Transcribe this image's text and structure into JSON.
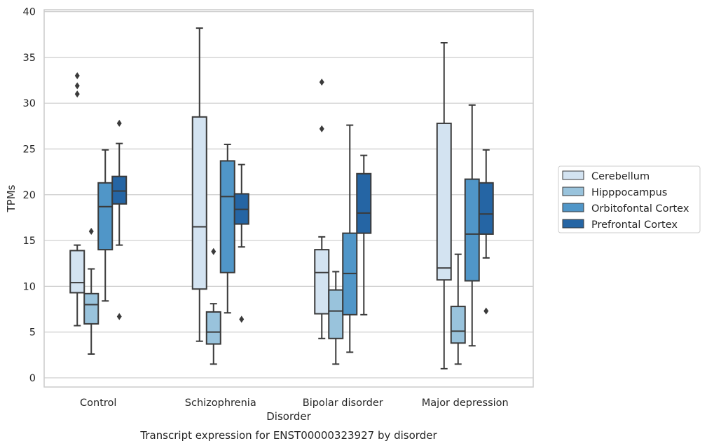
{
  "chart_data": {
    "type": "box",
    "xlabel": "Disorder",
    "ylabel": "TPMs",
    "caption": "Transcript expression for ENST00000323927 by disorder",
    "ylim": [
      -1,
      40.2
    ],
    "yticks": [
      0,
      5,
      10,
      15,
      20,
      25,
      30,
      35,
      40
    ],
    "grid": "horizontal",
    "legend_position": "right, outside plot",
    "categories": [
      "Control",
      "Schizophrenia",
      "Bipolar disorder",
      "Major depression"
    ],
    "series": [
      {
        "name": "Cerebellum",
        "color": "#d3e3f1",
        "boxes": [
          {
            "whisker_low": 5.7,
            "q1": 9.3,
            "median": 10.4,
            "q3": 13.9,
            "whisker_high": 14.5,
            "outliers": [
              31.0,
              31.9,
              33.0
            ]
          },
          {
            "whisker_low": 4.0,
            "q1": 9.7,
            "median": 16.5,
            "q3": 28.5,
            "whisker_high": 38.2,
            "outliers": []
          },
          {
            "whisker_low": 4.3,
            "q1": 7.0,
            "median": 11.5,
            "q3": 14.0,
            "whisker_high": 15.4,
            "outliers": [
              27.2,
              32.3
            ]
          },
          {
            "whisker_low": 1.0,
            "q1": 10.7,
            "median": 12.0,
            "q3": 27.8,
            "whisker_high": 36.6,
            "outliers": []
          }
        ]
      },
      {
        "name": "Hipppocampus",
        "color": "#99c3dc",
        "boxes": [
          {
            "whisker_low": 2.6,
            "q1": 5.9,
            "median": 8.0,
            "q3": 9.2,
            "whisker_high": 11.9,
            "outliers": [
              16.0
            ]
          },
          {
            "whisker_low": 1.5,
            "q1": 3.7,
            "median": 5.0,
            "q3": 7.2,
            "whisker_high": 8.1,
            "outliers": [
              13.8
            ]
          },
          {
            "whisker_low": 1.5,
            "q1": 4.3,
            "median": 7.3,
            "q3": 9.6,
            "whisker_high": 11.6,
            "outliers": []
          },
          {
            "whisker_low": 1.5,
            "q1": 3.8,
            "median": 5.1,
            "q3": 7.8,
            "whisker_high": 13.5,
            "outliers": []
          }
        ]
      },
      {
        "name": "Orbitofontal Cortex",
        "color": "#5096c8",
        "boxes": [
          {
            "whisker_low": 8.4,
            "q1": 14.0,
            "median": 18.7,
            "q3": 21.3,
            "whisker_high": 24.9,
            "outliers": []
          },
          {
            "whisker_low": 7.1,
            "q1": 11.5,
            "median": 19.8,
            "q3": 23.7,
            "whisker_high": 25.5,
            "outliers": []
          },
          {
            "whisker_low": 2.8,
            "q1": 6.9,
            "median": 11.4,
            "q3": 15.8,
            "whisker_high": 27.6,
            "outliers": []
          },
          {
            "whisker_low": 3.5,
            "q1": 10.6,
            "median": 15.7,
            "q3": 21.7,
            "whisker_high": 29.8,
            "outliers": []
          }
        ]
      },
      {
        "name": "Prefrontal Cortex",
        "color": "#2565a4",
        "boxes": [
          {
            "whisker_low": 14.5,
            "q1": 19.0,
            "median": 20.4,
            "q3": 22.0,
            "whisker_high": 25.6,
            "outliers": [
              6.7,
              27.8
            ]
          },
          {
            "whisker_low": 14.3,
            "q1": 16.8,
            "median": 18.4,
            "q3": 20.1,
            "whisker_high": 23.3,
            "outliers": [
              6.4
            ]
          },
          {
            "whisker_low": 6.9,
            "q1": 15.8,
            "median": 18.0,
            "q3": 22.3,
            "whisker_high": 24.3,
            "outliers": []
          },
          {
            "whisker_low": 13.1,
            "q1": 15.7,
            "median": 17.9,
            "q3": 21.3,
            "whisker_high": 24.9,
            "outliers": [
              7.3
            ]
          }
        ]
      }
    ]
  }
}
